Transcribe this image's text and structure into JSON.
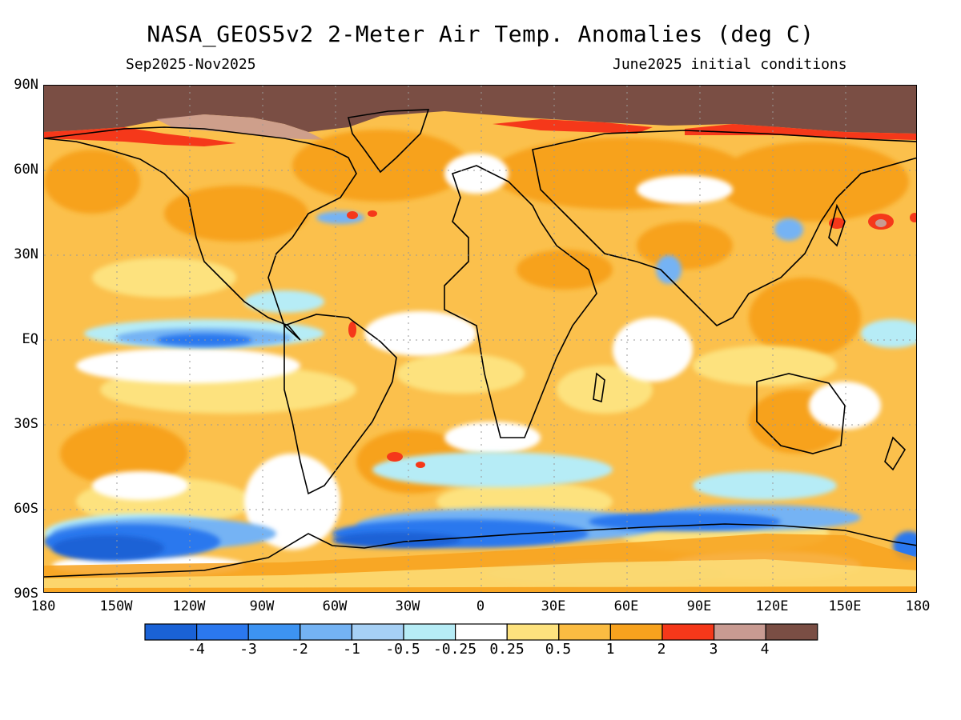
{
  "title": "NASA_GEOS5v2 2-Meter Air Temp. Anomalies (deg C)",
  "subtitle_left": "Sep2025-Nov2025",
  "subtitle_right": "June2025 initial conditions",
  "lat_labels": [
    "90N",
    "60N",
    "30N",
    "EQ",
    "30S",
    "60S",
    "90S"
  ],
  "lon_labels": [
    "180",
    "150W",
    "120W",
    "90W",
    "60W",
    "30W",
    "0",
    "30E",
    "60E",
    "90E",
    "120E",
    "150E",
    "180"
  ],
  "colorbar": {
    "colors": [
      "#1a62d6",
      "#2b78ee",
      "#3d93f2",
      "#74b3f4",
      "#a6d0f5",
      "#b6ecf6",
      "#ffffff",
      "#fde27e",
      "#fbbc42",
      "#f7a21e",
      "#f5381a",
      "#c99b92",
      "#7a4e44"
    ],
    "labels": [
      "-4",
      "-3",
      "-2",
      "-1",
      "-0.5",
      "-0.25",
      "0.25",
      "0.5",
      "1",
      "2",
      "3",
      "4"
    ]
  },
  "map_colors": {
    "background": "#fbc04c",
    "ocean_white": "#ffffff",
    "warm_light": "#fde27e",
    "warm_orange": "#f7a21e",
    "hot_red": "#f5381a",
    "pink": "#c99b92",
    "arctic_brown": "#7a4e44",
    "cool_light": "#b6ecf6",
    "cool_blue": "#74b3f4",
    "cool_dark": "#2b78ee",
    "cool_deep": "#1a62d6",
    "coastline": "#000000",
    "gridline": "#999999"
  }
}
